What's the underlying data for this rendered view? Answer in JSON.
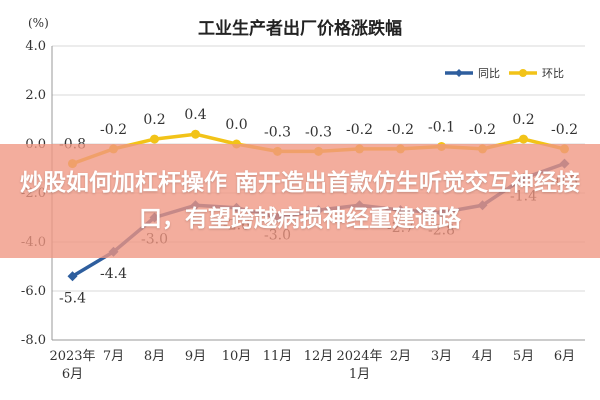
{
  "chart_data": {
    "type": "line",
    "title": "工业生产者出厂价格涨跌幅",
    "unit_label": "(%)",
    "categories": [
      [
        "2023年",
        "6月"
      ],
      [
        "7月"
      ],
      [
        "8月"
      ],
      [
        "9月"
      ],
      [
        "10月"
      ],
      [
        "11月"
      ],
      [
        "12月"
      ],
      [
        "2024年",
        "1月"
      ],
      [
        "2月"
      ],
      [
        "3月"
      ],
      [
        "4月"
      ],
      [
        "5月"
      ],
      [
        "6月"
      ]
    ],
    "ylim": [
      -8.0,
      4.0
    ],
    "yticks": [
      "4.0",
      "2.0",
      "0.0",
      "-2.0",
      "-4.0",
      "-6.0",
      "-8.0"
    ],
    "grid": true,
    "legend_position": "top-right",
    "series": [
      {
        "name": "同比",
        "color": "#2e5e9e",
        "marker": "diamond",
        "values": [
          -5.4,
          -4.4,
          -3.0,
          -2.5,
          -2.6,
          -3.0,
          -2.7,
          -2.5,
          -2.7,
          -2.8,
          -2.5,
          -1.4,
          -0.8
        ],
        "labels": [
          "-5.4",
          "-4.4",
          "-3.0",
          "",
          "-2.6",
          "-3.0",
          "",
          "",
          "-2.7",
          "-2.8",
          "",
          "-1.4",
          "-0.8"
        ]
      },
      {
        "name": "环比",
        "color": "#f2c318",
        "marker": "circle",
        "values": [
          -0.8,
          -0.2,
          0.2,
          0.4,
          0.0,
          -0.3,
          -0.3,
          -0.2,
          -0.2,
          -0.1,
          -0.2,
          0.2,
          -0.2
        ],
        "labels": [
          "-0.8",
          "-0.2",
          "0.2",
          "0.4",
          "0.0",
          "-0.3",
          "-0.3",
          "-0.2",
          "-0.2",
          "-0.1",
          "-0.2",
          "0.2",
          "-0.2"
        ]
      }
    ]
  },
  "overlay": {
    "headline": "炒股如何加杠杆操作 南开造出首款仿生听觉交互神经接口，有望跨越病损神经重建通路"
  }
}
